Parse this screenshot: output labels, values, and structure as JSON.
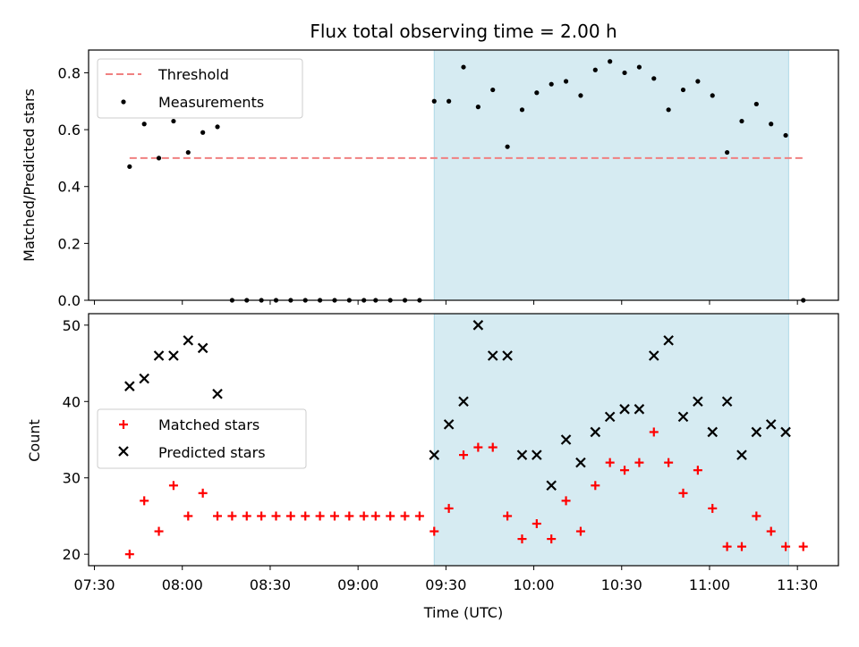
{
  "chart_data": [
    {
      "type": "scatter",
      "title": "Flux total observing time = 2.00 h",
      "xlabel": "",
      "ylabel": "Matched/Predicted stars",
      "ylim": [
        0,
        0.88
      ],
      "yticks": [
        "0.0",
        "0.2",
        "0.4",
        "0.6",
        "0.8"
      ],
      "xlim": [
        "07:28",
        "11:44"
      ],
      "grid": false,
      "legend_position": "top-left",
      "highlight_band": {
        "x": [
          "09:26",
          "11:27"
        ],
        "color": "#add8e6"
      },
      "threshold": {
        "name": "Threshold",
        "value": 0.5,
        "x": [
          "07:42",
          "11:32"
        ],
        "color": "#f08080"
      },
      "series": [
        {
          "name": "Measurements",
          "marker": "dot",
          "color": "#000000",
          "x": [
            "07:42",
            "07:47",
            "07:52",
            "07:57",
            "08:02",
            "08:07",
            "08:12",
            "08:17",
            "08:22",
            "08:27",
            "08:32",
            "08:37",
            "08:42",
            "08:47",
            "08:52",
            "08:57",
            "09:02",
            "09:06",
            "09:11",
            "09:16",
            "09:21",
            "09:26",
            "09:31",
            "09:36",
            "09:41",
            "09:46",
            "09:51",
            "09:56",
            "10:01",
            "10:06",
            "10:11",
            "10:16",
            "10:21",
            "10:26",
            "10:31",
            "10:36",
            "10:41",
            "10:46",
            "10:51",
            "10:56",
            "11:01",
            "11:06",
            "11:11",
            "11:16",
            "11:21",
            "11:26",
            "11:32"
          ],
          "y": [
            0.47,
            0.62,
            0.5,
            0.63,
            0.52,
            0.59,
            0.61,
            0,
            0,
            0,
            0,
            0,
            0,
            0,
            0,
            0,
            0,
            0,
            0,
            0,
            0,
            0.7,
            0.7,
            0.82,
            0.68,
            0.74,
            0.54,
            0.67,
            0.73,
            0.76,
            0.77,
            0.72,
            0.81,
            0.84,
            0.8,
            0.82,
            0.78,
            0.67,
            0.74,
            0.77,
            0.72,
            0.52,
            0.63,
            0.69,
            0.62,
            0.58,
            0
          ]
        }
      ]
    },
    {
      "type": "scatter",
      "title": "",
      "xlabel": "Time (UTC)",
      "ylabel": "Count",
      "ylim": [
        18.5,
        51.5
      ],
      "yticks": [
        "20",
        "30",
        "40",
        "50"
      ],
      "xticks": [
        "07:30",
        "08:00",
        "08:30",
        "09:00",
        "09:30",
        "10:00",
        "10:30",
        "11:00",
        "11:30"
      ],
      "xlim": [
        "07:28",
        "11:44"
      ],
      "grid": false,
      "legend_position": "center-left",
      "highlight_band": {
        "x": [
          "09:26",
          "11:27"
        ],
        "color": "#add8e6"
      },
      "series": [
        {
          "name": "Matched stars",
          "marker": "plus",
          "color": "#ff0000",
          "x": [
            "07:42",
            "07:47",
            "07:52",
            "07:57",
            "08:02",
            "08:07",
            "08:12",
            "08:17",
            "08:22",
            "08:27",
            "08:32",
            "08:37",
            "08:42",
            "08:47",
            "08:52",
            "08:57",
            "09:02",
            "09:06",
            "09:11",
            "09:16",
            "09:21",
            "09:26",
            "09:31",
            "09:36",
            "09:41",
            "09:46",
            "09:51",
            "09:56",
            "10:01",
            "10:06",
            "10:11",
            "10:16",
            "10:21",
            "10:26",
            "10:31",
            "10:36",
            "10:41",
            "10:46",
            "10:51",
            "10:56",
            "11:01",
            "11:06",
            "11:11",
            "11:16",
            "11:21",
            "11:26",
            "11:32"
          ],
          "y": [
            20,
            27,
            23,
            29,
            25,
            28,
            25,
            25,
            25,
            25,
            25,
            25,
            25,
            25,
            25,
            25,
            25,
            25,
            25,
            25,
            25,
            23,
            26,
            33,
            34,
            34,
            25,
            22,
            24,
            22,
            27,
            23,
            29,
            32,
            31,
            32,
            36,
            32,
            28,
            31,
            26,
            21,
            21,
            25,
            23,
            21,
            21
          ]
        },
        {
          "name": "Predicted stars",
          "marker": "x",
          "color": "#000000",
          "x": [
            "07:42",
            "07:47",
            "07:52",
            "07:57",
            "08:02",
            "08:07",
            "08:12",
            "09:26",
            "09:31",
            "09:36",
            "09:41",
            "09:46",
            "09:51",
            "09:56",
            "10:01",
            "10:06",
            "10:11",
            "10:16",
            "10:21",
            "10:26",
            "10:31",
            "10:36",
            "10:41",
            "10:46",
            "10:51",
            "10:56",
            "11:01",
            "11:06",
            "11:11",
            "11:16",
            "11:21",
            "11:26"
          ],
          "y": [
            42,
            43,
            46,
            46,
            48,
            47,
            41,
            33,
            37,
            40,
            50,
            46,
            46,
            33,
            33,
            29,
            35,
            32,
            36,
            38,
            39,
            39,
            46,
            48,
            38,
            40,
            36,
            40,
            33,
            36,
            37,
            36
          ]
        }
      ]
    }
  ]
}
